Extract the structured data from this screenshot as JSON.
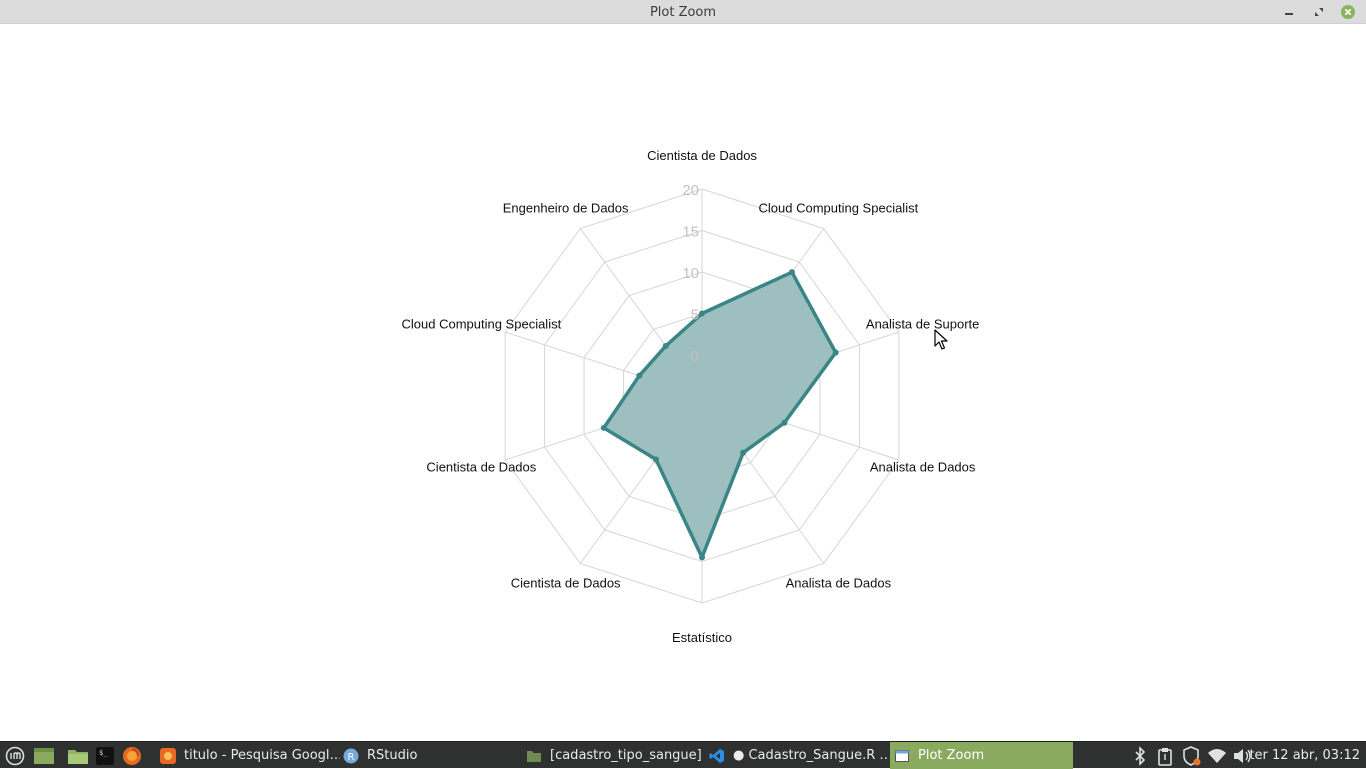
{
  "window": {
    "title": "Plot Zoom"
  },
  "chart_data": {
    "type": "radar",
    "axes": [
      "Cientista de Dados",
      "Cloud Computing Specialist",
      "Analista de Suporte",
      "Analista de Dados",
      "Analista de Dados",
      "Estatístico",
      "Cientista de Dados",
      "Cientista de Dados",
      "Cloud Computing Specialist",
      "Engenheiro de Dados"
    ],
    "values": [
      5,
      13.5,
      12,
      5.5,
      3.5,
      14.5,
      4.5,
      7.5,
      3,
      2.5
    ],
    "range": [
      0,
      20
    ],
    "ticks": [
      "0",
      "5",
      "10",
      "15",
      "20"
    ],
    "color": "#3a8585",
    "fill": "#9ebfbf",
    "grid": true
  },
  "taskbar": {
    "items": [
      {
        "label": "titulo - Pesquisa Googl…",
        "icon": "firefox-icon"
      },
      {
        "label": "RStudio",
        "icon": "rstudio-icon"
      },
      {
        "label": "[cadastro_tipo_sangue]",
        "icon": "folder-icon"
      },
      {
        "label": "● Cadastro_Sangue.R …",
        "icon": "vscode-icon"
      },
      {
        "label": "Plot Zoom",
        "icon": "window-icon"
      }
    ],
    "clock": "ter 12 abr, 03:12",
    "active_color": "#8aab5f"
  }
}
